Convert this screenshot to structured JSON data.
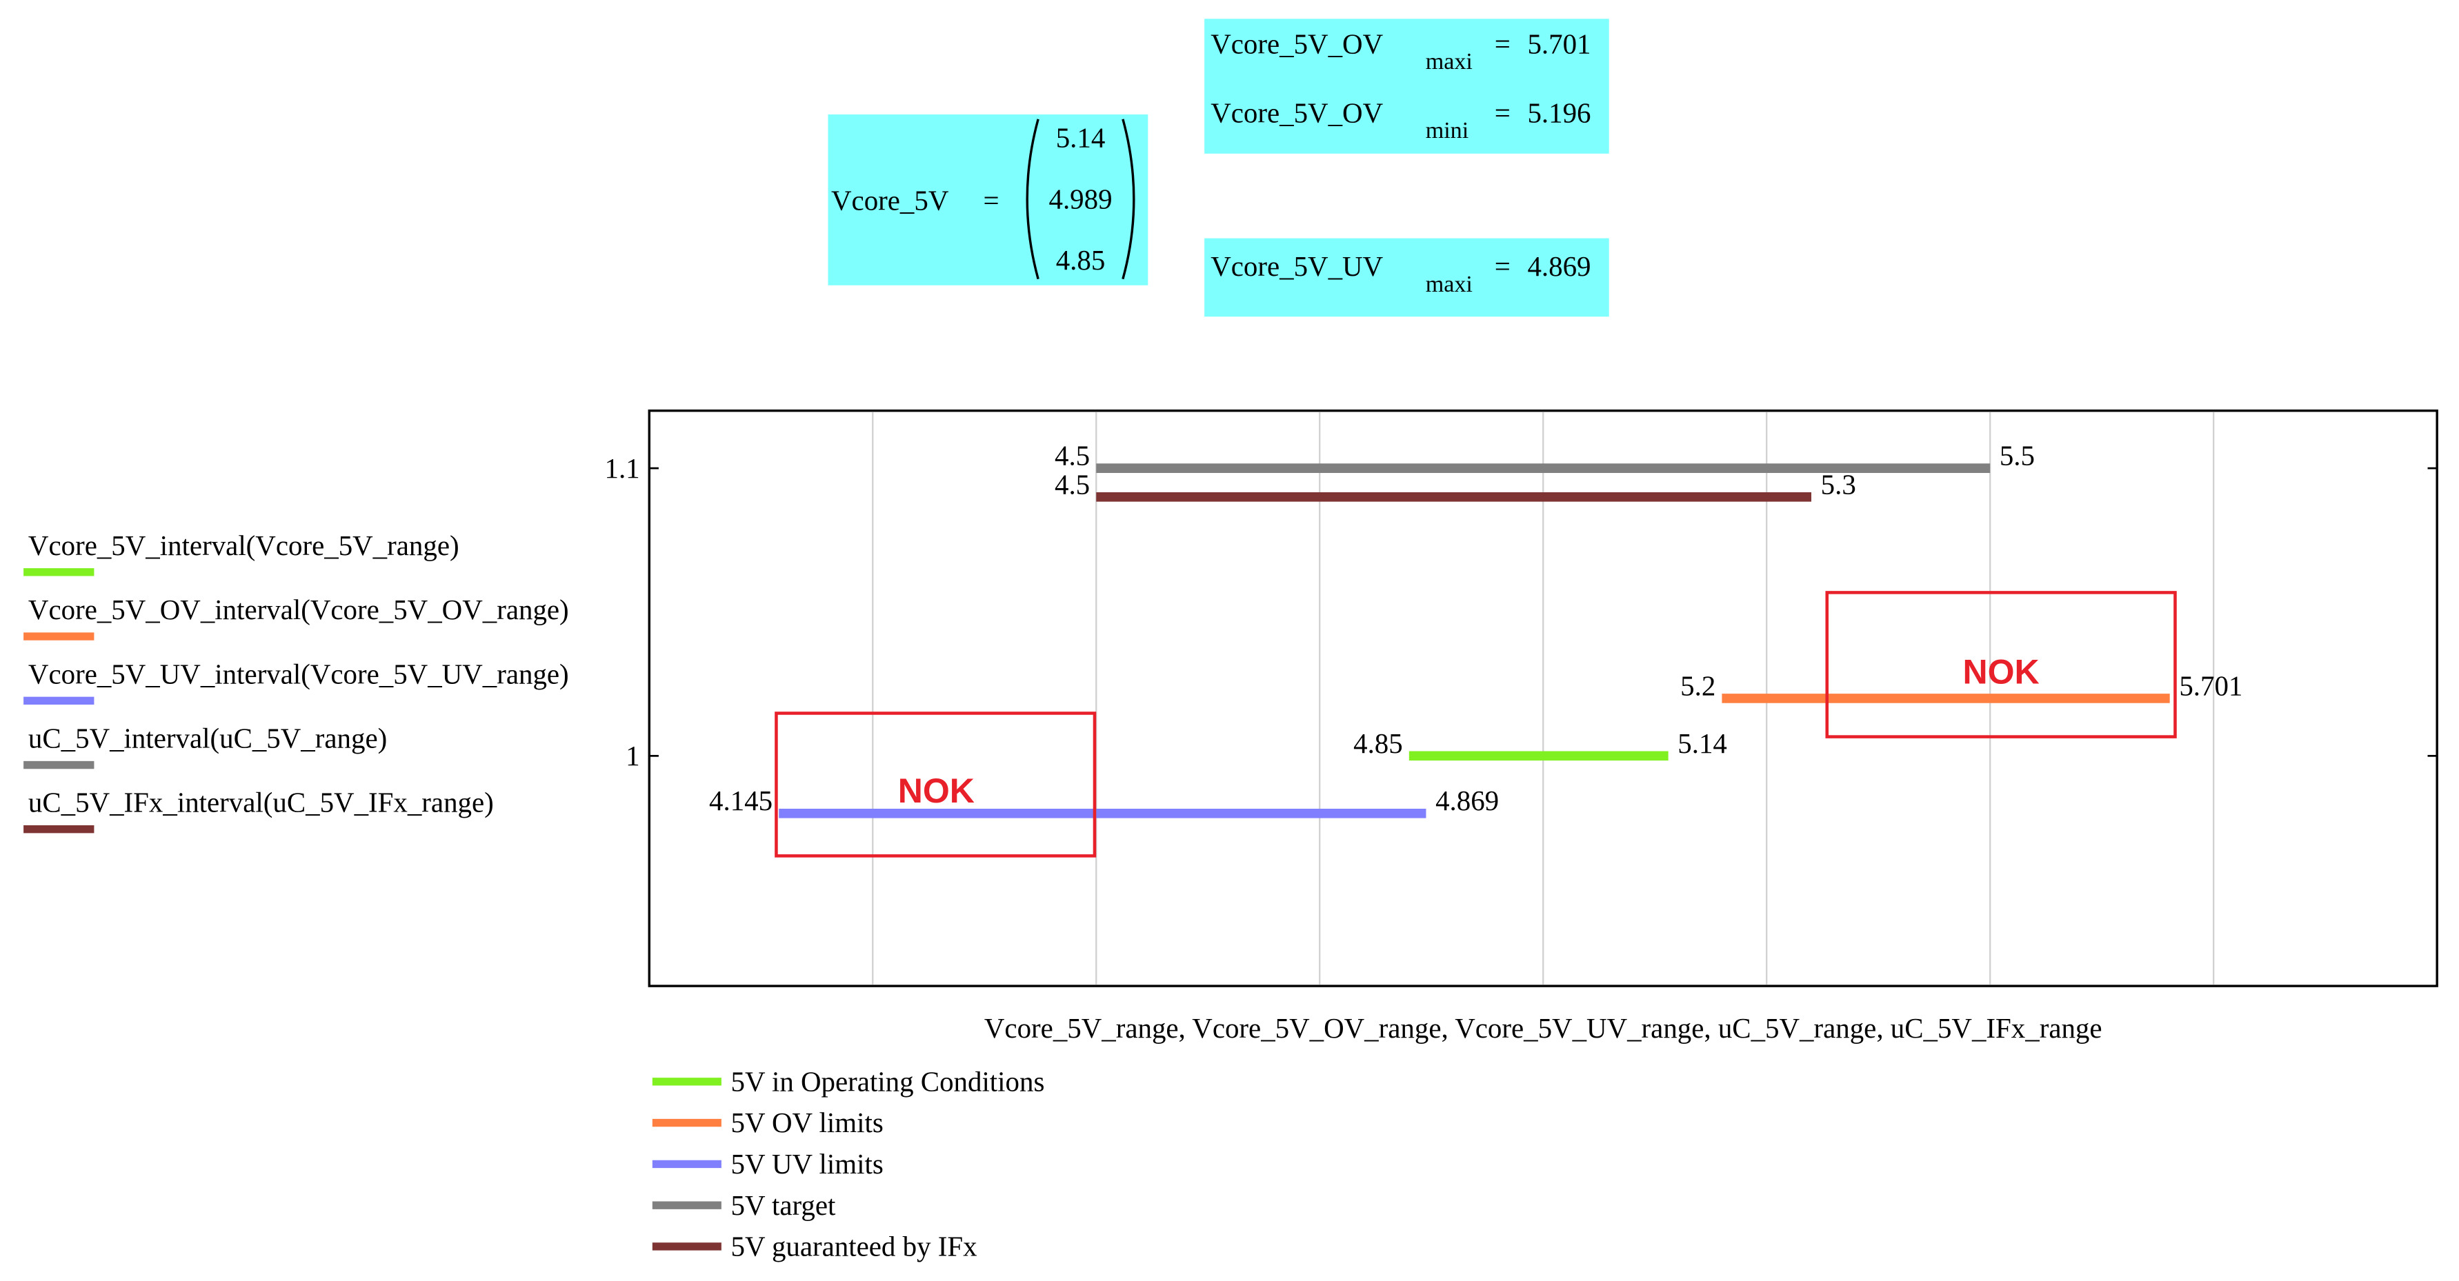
{
  "worksheet": {
    "vector": {
      "lhs": "Vcore_5V",
      "op": "=",
      "values": [
        5.14,
        4.989,
        4.85
      ]
    },
    "results": [
      {
        "lhs": "Vcore_5V_OV",
        "sub": "maxi",
        "op": "=",
        "rhs": 5.701
      },
      {
        "lhs": "Vcore_5V_OV",
        "sub": "mini",
        "op": "=",
        "rhs": 5.196
      },
      {
        "lhs": "Vcore_5V_UV",
        "sub": "maxi",
        "op": "=",
        "rhs": 4.869
      }
    ]
  },
  "chart_data": {
    "type": "interval",
    "x_label": "Vcore_5V_range, Vcore_5V_OV_range, Vcore_5V_UV_range, uC_5V_range, uC_5V_IFx_range",
    "xlim": [
      4.0,
      6.0
    ],
    "xticks": [
      4.25,
      4.5,
      4.75,
      5.0,
      5.25,
      5.5,
      5.75
    ],
    "grid": true,
    "ylim": [
      0.92,
      1.12
    ],
    "yticks": [
      1,
      1.1
    ],
    "series": [
      {
        "name": "5V in Operating Conditions",
        "expression": "Vcore_5V_interval(Vcore_5V_range)",
        "color": "#80f020",
        "x": [
          4.85,
          5.14
        ],
        "values": [
          1.0,
          1.0
        ]
      },
      {
        "name": "5V OV limits",
        "expression": "Vcore_5V_OV_interval(Vcore_5V_OV_range)",
        "color": "#ff7f40",
        "x": [
          5.2,
          5.701
        ],
        "values": [
          1.02,
          1.02
        ]
      },
      {
        "name": "5V UV limits",
        "expression": "Vcore_5V_UV_interval(Vcore_5V_UV_range)",
        "color": "#8080ff",
        "x": [
          4.145,
          4.869
        ],
        "values": [
          0.98,
          0.98
        ]
      },
      {
        "name": "5V target",
        "expression": "uC_5V_interval(uC_5V_range)",
        "color": "#808080",
        "x": [
          4.5,
          5.5
        ],
        "values": [
          1.1,
          1.1
        ]
      },
      {
        "name": "5V guaranteed by IFx",
        "expression": "uC_5V_IFx_interval(uC_5V_IFx_range)",
        "color": "#7f3434",
        "x": [
          4.5,
          5.3
        ],
        "values": [
          1.09,
          1.09
        ]
      }
    ],
    "annotations": [
      "NOK",
      "NOK"
    ]
  }
}
